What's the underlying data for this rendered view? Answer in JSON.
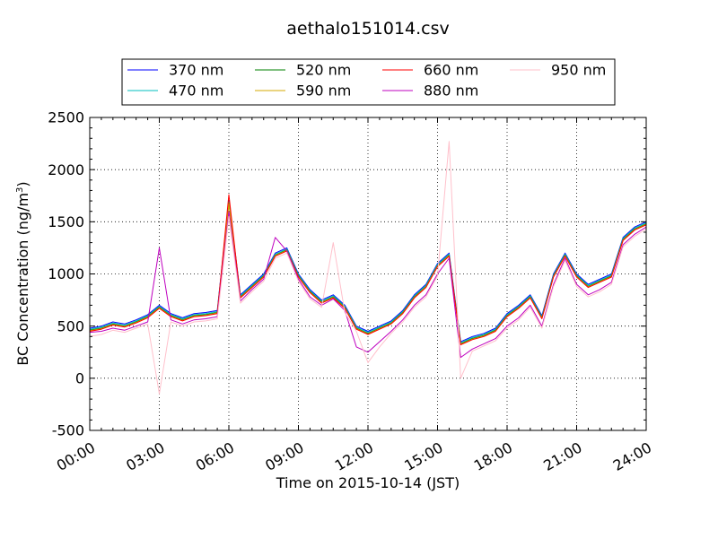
{
  "chart_data": {
    "type": "line",
    "title": "aethalo151014.csv",
    "xlabel": "Time on 2015-10-14 (JST)",
    "ylabel": "BC Concentration (ng/m",
    "ylabel_unit_superscript": "3",
    "ylabel_suffix": ")",
    "xlim": [
      "00:00",
      "24:00"
    ],
    "ylim": [
      -500,
      2500
    ],
    "grid": true,
    "legend_placement": "top-center",
    "x_ticks": [
      "00:00",
      "03:00",
      "06:00",
      "09:00",
      "12:00",
      "15:00",
      "18:00",
      "21:00",
      "24:00"
    ],
    "y_ticks": [
      -500,
      0,
      500,
      1000,
      1500,
      2000,
      2500
    ],
    "x": [
      "00:00",
      "00:30",
      "01:00",
      "01:30",
      "02:00",
      "02:30",
      "03:00",
      "03:30",
      "04:00",
      "04:30",
      "05:00",
      "05:30",
      "06:00",
      "06:30",
      "07:00",
      "07:30",
      "08:00",
      "08:30",
      "09:00",
      "09:30",
      "10:00",
      "10:30",
      "11:00",
      "11:30",
      "12:00",
      "12:30",
      "13:00",
      "13:30",
      "14:00",
      "14:30",
      "15:00",
      "15:30",
      "16:00",
      "16:30",
      "17:00",
      "17:30",
      "18:00",
      "18:30",
      "19:00",
      "19:30",
      "20:00",
      "20:30",
      "21:00",
      "21:30",
      "22:00",
      "22:30",
      "23:00",
      "23:30",
      "24:00"
    ],
    "series": [
      {
        "name": "370 nm",
        "color": "#0000ff",
        "values": [
          480,
          500,
          540,
          520,
          560,
          610,
          700,
          620,
          580,
          620,
          630,
          650,
          1700,
          800,
          900,
          1000,
          1200,
          1250,
          1000,
          850,
          750,
          800,
          700,
          500,
          450,
          500,
          550,
          650,
          800,
          900,
          1100,
          1200,
          350,
          400,
          430,
          480,
          620,
          700,
          800,
          600,
          1000,
          1200,
          1000,
          900,
          950,
          1000,
          1350,
          1450,
          1500
        ]
      },
      {
        "name": "470 nm",
        "color": "#00bfbf",
        "values": [
          470,
          490,
          530,
          510,
          550,
          600,
          690,
          610,
          570,
          610,
          620,
          640,
          1690,
          790,
          890,
          990,
          1190,
          1240,
          990,
          840,
          740,
          790,
          690,
          490,
          440,
          490,
          540,
          640,
          790,
          890,
          1090,
          1190,
          340,
          390,
          420,
          470,
          610,
          690,
          790,
          590,
          990,
          1190,
          990,
          890,
          940,
          990,
          1340,
          1440,
          1490
        ]
      },
      {
        "name": "520 nm",
        "color": "#008000",
        "values": [
          460,
          480,
          520,
          500,
          540,
          590,
          680,
          600,
          560,
          600,
          610,
          630,
          1680,
          780,
          880,
          980,
          1180,
          1230,
          980,
          830,
          730,
          780,
          680,
          480,
          430,
          480,
          530,
          630,
          780,
          880,
          1080,
          1180,
          330,
          380,
          410,
          460,
          600,
          680,
          780,
          580,
          980,
          1180,
          980,
          880,
          930,
          980,
          1330,
          1430,
          1480
        ]
      },
      {
        "name": "590 nm",
        "color": "#d4aa00",
        "values": [
          455,
          475,
          515,
          495,
          535,
          585,
          675,
          595,
          555,
          595,
          605,
          625,
          1675,
          775,
          875,
          975,
          1175,
          1225,
          975,
          825,
          725,
          775,
          675,
          475,
          425,
          475,
          525,
          625,
          775,
          875,
          1075,
          1175,
          325,
          375,
          405,
          455,
          595,
          675,
          775,
          575,
          975,
          1175,
          975,
          875,
          925,
          975,
          1325,
          1425,
          1475
        ]
      },
      {
        "name": "660 nm",
        "color": "#ff0000",
        "values": [
          450,
          470,
          510,
          490,
          530,
          580,
          670,
          590,
          550,
          590,
          600,
          620,
          1760,
          770,
          870,
          970,
          1170,
          1220,
          970,
          820,
          720,
          770,
          670,
          470,
          420,
          470,
          520,
          620,
          770,
          870,
          1070,
          1170,
          320,
          370,
          400,
          450,
          590,
          670,
          770,
          570,
          970,
          1170,
          970,
          870,
          920,
          970,
          1320,
          1420,
          1470
        ]
      },
      {
        "name": "880 nm",
        "color": "#bf00bf",
        "values": [
          440,
          450,
          480,
          460,
          500,
          540,
          1250,
          560,
          520,
          560,
          570,
          590,
          1600,
          740,
          850,
          950,
          1350,
          1220,
          950,
          780,
          700,
          760,
          650,
          300,
          250,
          350,
          450,
          560,
          700,
          800,
          1000,
          1150,
          200,
          280,
          330,
          380,
          500,
          580,
          700,
          500,
          900,
          1150,
          900,
          800,
          850,
          920,
          1280,
          1380,
          1450
        ]
      },
      {
        "name": "950 nm",
        "color": "#ffc0cb",
        "values": [
          400,
          420,
          460,
          440,
          480,
          520,
          -150,
          540,
          500,
          540,
          550,
          570,
          1550,
          720,
          830,
          930,
          1150,
          1200,
          930,
          760,
          680,
          1300,
          630,
          450,
          150,
          300,
          430,
          540,
          680,
          780,
          980,
          2270,
          0,
          260,
          310,
          360,
          480,
          560,
          680,
          480,
          880,
          1130,
          880,
          780,
          830,
          900,
          1260,
          1360,
          1430
        ]
      }
    ]
  }
}
